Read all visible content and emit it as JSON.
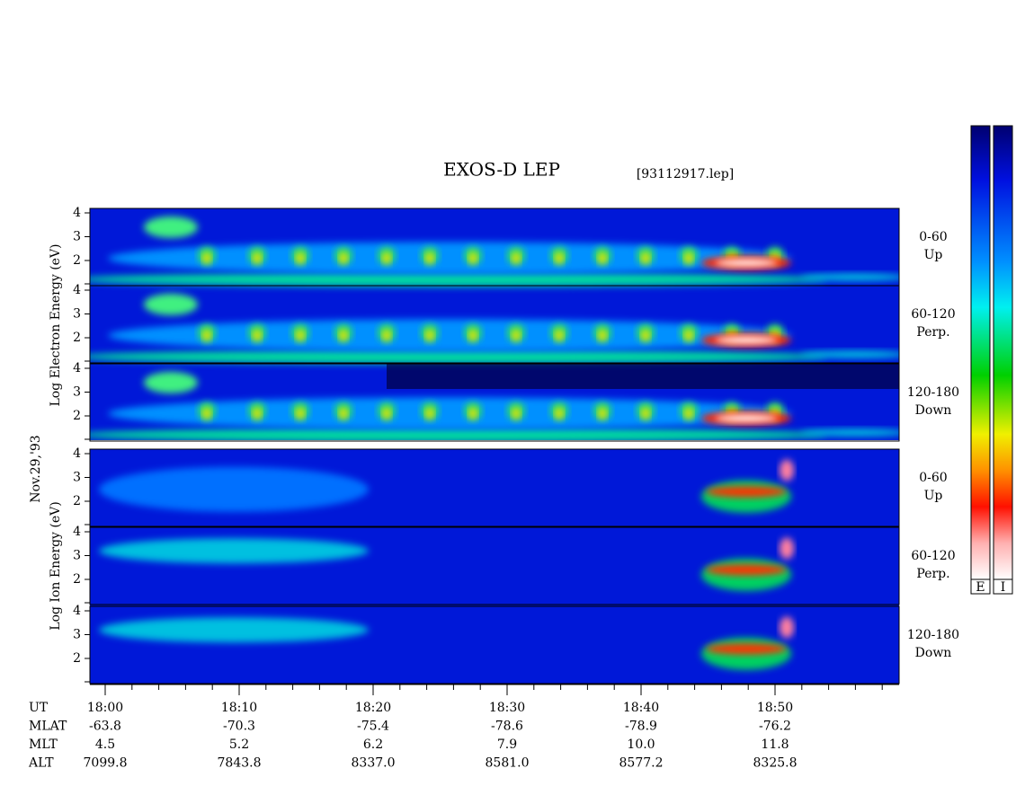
{
  "header": {
    "title": "EXOS-D LEP",
    "file": "[93112917.lep]"
  },
  "left_labels": {
    "electron": "Log  Electron  Energy (eV)",
    "date": "Nov.29,'93",
    "ion": "Log  Ion  Energy (eV)"
  },
  "y_ticks": [
    "4",
    "3",
    "2"
  ],
  "panels": [
    {
      "range": "0-60",
      "direction": "Up"
    },
    {
      "range": "60-120",
      "direction": "Perp."
    },
    {
      "range": "120-180",
      "direction": "Down"
    },
    {
      "range": "0-60",
      "direction": "Up"
    },
    {
      "range": "60-120",
      "direction": "Perp."
    },
    {
      "range": "120-180",
      "direction": "Down"
    }
  ],
  "rows": [
    {
      "label": "UT",
      "values": [
        "18:00",
        "18:10",
        "18:20",
        "18:30",
        "18:40",
        "18:50"
      ]
    },
    {
      "label": "MLAT",
      "values": [
        "-63.8",
        "-70.3",
        "-75.4",
        "-78.6",
        "-78.9",
        "-76.2"
      ]
    },
    {
      "label": "MLT",
      "values": [
        "4.5",
        "5.2",
        "6.2",
        "7.9",
        "10.0",
        "11.8"
      ]
    },
    {
      "label": "ALT",
      "values": [
        "7099.8",
        "7843.8",
        "8337.0",
        "8581.0",
        "8577.2",
        "8325.8"
      ]
    }
  ],
  "colorbar_labels": [
    "E",
    "I"
  ]
}
